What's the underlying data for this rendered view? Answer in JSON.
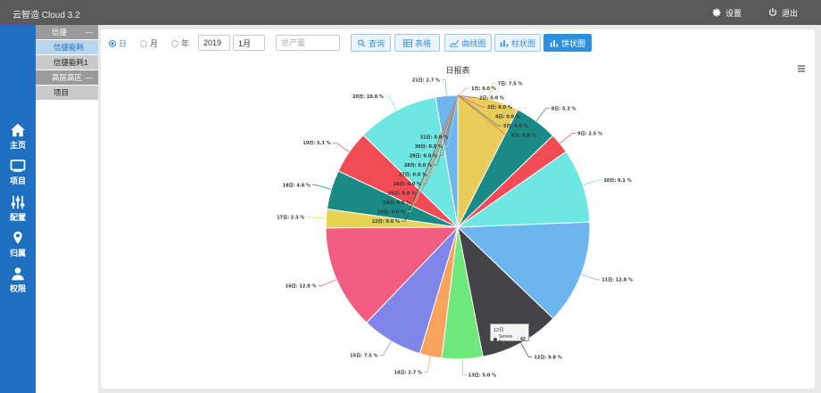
{
  "app": {
    "title": "云智造 Cloud 3.2"
  },
  "top_actions": {
    "settings": "设置",
    "logout": "退出"
  },
  "nav": [
    {
      "label": "主页",
      "icon": "home-icon"
    },
    {
      "label": "项目",
      "icon": "monitor-icon"
    },
    {
      "label": "配置",
      "icon": "sliders-icon"
    },
    {
      "label": "归属",
      "icon": "location-pin-icon"
    },
    {
      "label": "权限",
      "icon": "user-icon"
    }
  ],
  "tree": {
    "group1": {
      "label": "信捷",
      "toggle": "—"
    },
    "group1_children": [
      "信捷能耗",
      "信捷能耗1"
    ],
    "group2": {
      "label": "高层高区",
      "toggle": "—"
    },
    "group2_children": [
      "项目"
    ]
  },
  "toolbar": {
    "period_day": "日",
    "period_month": "月",
    "period_year": "年",
    "year_value": "2019",
    "month_value": "1月",
    "metric_placeholder": "总产量",
    "btn_query": "查询",
    "btn_table": "表格",
    "btn_line": "曲线图",
    "btn_bar": "柱状图",
    "btn_pie": "饼状图"
  },
  "colors": {
    "accent": "#2c8fe0",
    "nav_bg": "#1f6fc0",
    "topbar_bg": "#5a5a5a"
  },
  "tooltip": {
    "title": "12日",
    "series_label": "Series 1",
    "value": "42"
  },
  "chart_data": {
    "type": "pie",
    "title": "日报表",
    "slices": [
      {
        "label": "1日: 0.0 %",
        "value": 0.0,
        "color": "#f7a35c"
      },
      {
        "label": "2日: 0.0 %",
        "value": 0.0,
        "color": "#8085e9"
      },
      {
        "label": "3日: 0.0 %",
        "value": 0.0,
        "color": "#f15c80"
      },
      {
        "label": "4日: 0.0 %",
        "value": 0.0,
        "color": "#e4d354"
      },
      {
        "label": "5日: 0.0 %",
        "value": 0.0,
        "color": "#2b908f"
      },
      {
        "label": "6日: 0.0 %",
        "value": 0.0,
        "color": "#f45b5b"
      },
      {
        "label": "7日: 7.5 %",
        "value": 7.5,
        "color": "#e8cd5a"
      },
      {
        "label": "8日: 5.3 %",
        "value": 5.3,
        "color": "#1a8a86"
      },
      {
        "label": "9日: 2.5 %",
        "value": 2.5,
        "color": "#f14b55"
      },
      {
        "label": "10日: 9.1 %",
        "value": 9.1,
        "color": "#6ee6e2"
      },
      {
        "label": "11日: 12.8 %",
        "value": 12.8,
        "color": "#6cb5ee"
      },
      {
        "label": "12日: 9.8 %",
        "value": 9.8,
        "color": "#434348"
      },
      {
        "label": "13日: 5.0 %",
        "value": 5.0,
        "color": "#6ee87a"
      },
      {
        "label": "14日: 2.7 %",
        "value": 2.7,
        "color": "#f7a35c"
      },
      {
        "label": "15日: 7.5 %",
        "value": 7.5,
        "color": "#8085e9"
      },
      {
        "label": "16日: 12.8 %",
        "value": 12.8,
        "color": "#f15c80"
      },
      {
        "label": "17日: 2.3 %",
        "value": 2.3,
        "color": "#e4d354"
      },
      {
        "label": "18日: 4.8 %",
        "value": 4.8,
        "color": "#1a8a86"
      },
      {
        "label": "19日: 5.3 %",
        "value": 5.3,
        "color": "#f14b55"
      },
      {
        "label": "20日: 10.0 %",
        "value": 10.0,
        "color": "#6ee6e2"
      },
      {
        "label": "21日: 2.7 %",
        "value": 2.7,
        "color": "#6cb5ee"
      },
      {
        "label": "22日: 0.0 %",
        "value": 0.0,
        "color": "#434348"
      },
      {
        "label": "23日: 0.0 %",
        "value": 0.0,
        "color": "#90ed7d"
      },
      {
        "label": "24日: 0.0 %",
        "value": 0.0,
        "color": "#f7a35c"
      },
      {
        "label": "25日: 0.0 %",
        "value": 0.0,
        "color": "#8085e9"
      },
      {
        "label": "26日: 0.0 %",
        "value": 0.0,
        "color": "#f15c80"
      },
      {
        "label": "27日: 0.0 %",
        "value": 0.0,
        "color": "#e4d354"
      },
      {
        "label": "28日: 0.0 %",
        "value": 0.0,
        "color": "#2b908f"
      },
      {
        "label": "29日: 0.0 %",
        "value": 0.0,
        "color": "#f45b5b"
      },
      {
        "label": "30日: 0.0 %",
        "value": 0.0,
        "color": "#91e8e1"
      },
      {
        "label": "31日: 0.0 %",
        "value": 0.0,
        "color": "#7cb5ec"
      }
    ]
  }
}
